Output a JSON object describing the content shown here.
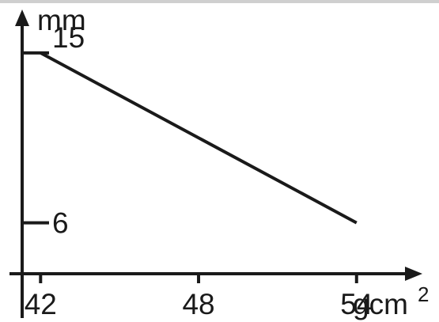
{
  "chart_data": {
    "type": "line",
    "xlabel": "gcm",
    "xlabel_superscript": "2",
    "ylabel": "mm",
    "x_ticks": [
      "42",
      "48",
      "54"
    ],
    "y_ticks": [
      "15",
      "6"
    ],
    "x": [
      42,
      54
    ],
    "y": [
      15,
      6
    ],
    "xlim": [
      41.3,
      56.5
    ],
    "ylim": [
      3.3,
      17.3
    ],
    "grid": false,
    "line_color": "#1a1a1a"
  }
}
